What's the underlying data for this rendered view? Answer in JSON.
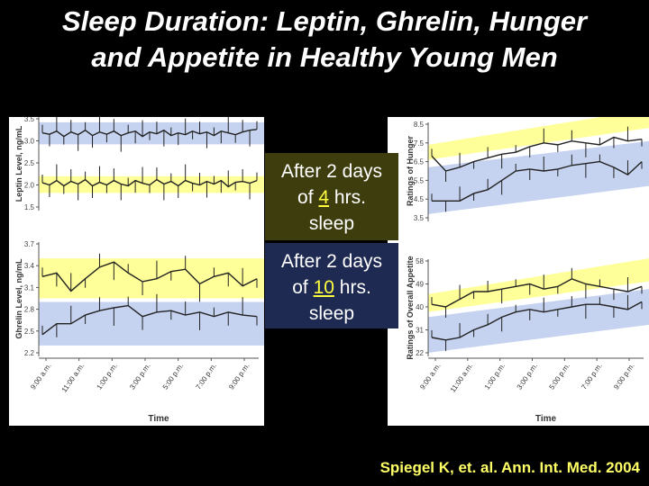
{
  "slide": {
    "title_line1": "Sleep Duration: Leptin, Ghrelin, Hunger",
    "title_line2": "and Appetite in Healthy Young Men",
    "overlay_4": {
      "l1": "After 2 days",
      "l2_a": "of ",
      "l2_num": "4",
      "l2_b": " hrs.",
      "l3": "sleep"
    },
    "overlay_10": {
      "l1": "After 2 days",
      "l2_a": "of ",
      "l2_num": "10",
      "l2_b": " hrs.",
      "l3": "sleep"
    },
    "citation": "Spiegel K, et. al. Ann. Int. Med. 2004",
    "colors": {
      "yellow_band": "#ffff99",
      "blue_band": "#c5d3f0",
      "background": "#000000"
    }
  },
  "chart_data": [
    {
      "id": "leptin",
      "type": "line",
      "ylabel": "Leptin Level, ng/mL",
      "ylim": [
        1.5,
        3.5
      ],
      "yticks": [
        3.5,
        3.0,
        2.5,
        2.0,
        1.5
      ],
      "series": [
        {
          "values": [
            3.18,
            3.15,
            3.22,
            3.1,
            3.2,
            3.14,
            3.24,
            3.12,
            3.2,
            3.15,
            3.22,
            3.12,
            3.18,
            3.22,
            3.1,
            3.2,
            3.16,
            3.24,
            3.12,
            3.18,
            3.14,
            3.22,
            3.16,
            3.2,
            3.12,
            3.22,
            3.18,
            3.14,
            3.2,
            3.24,
            3.26
          ]
        },
        {
          "values": [
            2.05,
            2.0,
            2.1,
            1.98,
            2.08,
            2.02,
            2.12,
            1.98,
            2.06,
            2.0,
            2.1,
            2.02,
            1.98,
            2.1,
            2.04,
            2.0,
            2.12,
            2.02,
            2.08,
            1.98,
            2.1,
            2.04,
            2.0,
            2.08,
            2.02,
            2.1,
            1.96,
            2.06,
            2.08,
            2.04,
            2.1
          ]
        }
      ]
    },
    {
      "id": "ghrelin",
      "type": "line",
      "ylabel": "Ghrelin Level, ng/mL",
      "ylim": [
        2.2,
        3.7
      ],
      "yticks": [
        3.7,
        3.4,
        3.1,
        2.8,
        2.5,
        2.2
      ],
      "series": [
        {
          "values": [
            3.25,
            3.3,
            3.05,
            3.22,
            3.38,
            3.45,
            3.3,
            3.18,
            3.22,
            3.32,
            3.35,
            3.15,
            3.25,
            3.3,
            3.12,
            3.22
          ]
        },
        {
          "values": [
            2.45,
            2.6,
            2.6,
            2.72,
            2.78,
            2.82,
            2.85,
            2.7,
            2.76,
            2.78,
            2.72,
            2.76,
            2.7,
            2.76,
            2.72,
            2.7
          ]
        }
      ],
      "xlabel": "Time",
      "xticks": [
        "9:00 a.m.",
        "11:00 a.m.",
        "1:00 p.m.",
        "3:00 p.m.",
        "5:00 p.m.",
        "7:00 p.m.",
        "9:00 p.m."
      ]
    },
    {
      "id": "hunger",
      "type": "line",
      "ylabel": "Ratings of Hunger",
      "ylim": [
        3.5,
        8.5
      ],
      "yticks": [
        8.5,
        7.5,
        6.5,
        5.5,
        4.5,
        3.5
      ],
      "series": [
        {
          "values": [
            6.8,
            6.0,
            6.2,
            6.5,
            6.7,
            6.9,
            7.0,
            7.3,
            7.5,
            7.4,
            7.6,
            7.5,
            7.4,
            7.8,
            7.6,
            7.7
          ]
        },
        {
          "values": [
            4.4,
            4.4,
            4.4,
            4.8,
            5.0,
            5.5,
            6.0,
            6.1,
            6.0,
            6.1,
            6.3,
            6.4,
            6.5,
            6.2,
            5.8,
            6.5
          ]
        }
      ]
    },
    {
      "id": "appetite",
      "type": "line",
      "ylabel": "Ratings of Overall Appetite",
      "ylim": [
        22,
        58
      ],
      "yticks": [
        58,
        49,
        40,
        31,
        22
      ],
      "series": [
        {
          "values": [
            41,
            40,
            43,
            46,
            46,
            47,
            48,
            49,
            47,
            48,
            51,
            49,
            48,
            47,
            46,
            48
          ]
        },
        {
          "values": [
            28,
            27,
            28,
            31,
            33,
            36,
            38,
            39,
            38,
            39,
            40,
            41,
            41,
            40,
            39,
            42
          ]
        }
      ],
      "xlabel": "Time",
      "xticks": [
        "9:00 a.m.",
        "11:00 a.m.",
        "1:00 p.m.",
        "3:00 p.m.",
        "5:00 p.m.",
        "7:00 p.m.",
        "9:00 p.m."
      ]
    }
  ]
}
